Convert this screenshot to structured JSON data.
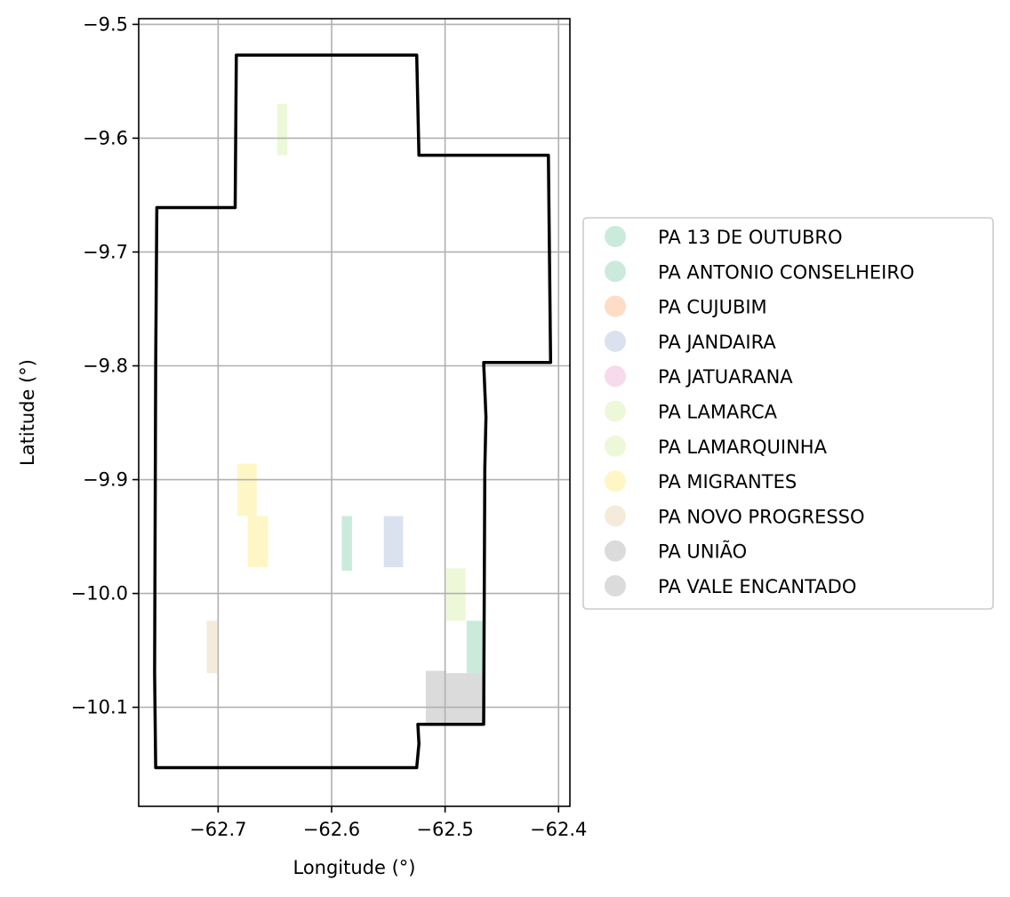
{
  "chart_data": {
    "type": "map",
    "xlabel": "Longitude (°)",
    "ylabel": "Latitude (°)",
    "xlim": [
      -62.77,
      -62.39
    ],
    "ylim": [
      -10.187,
      -9.495
    ],
    "grid": true,
    "legend_position": "right",
    "x_ticks": [
      {
        "value": -62.7,
        "label": "−62.7"
      },
      {
        "value": -62.6,
        "label": "−62.6"
      },
      {
        "value": -62.5,
        "label": "−62.5"
      },
      {
        "value": -62.4,
        "label": "−62.4"
      }
    ],
    "y_ticks": [
      {
        "value": -9.5,
        "label": "−9.5"
      },
      {
        "value": -9.6,
        "label": "−9.6"
      },
      {
        "value": -9.7,
        "label": "−9.7"
      },
      {
        "value": -9.8,
        "label": "−9.8"
      },
      {
        "value": -9.9,
        "label": "−9.9"
      },
      {
        "value": -10.0,
        "label": "−10.0"
      },
      {
        "value": -10.1,
        "label": "−10.1"
      }
    ],
    "boundary": [
      [
        -62.684,
        -9.527
      ],
      [
        -62.525,
        -9.527
      ],
      [
        -62.523,
        -9.615
      ],
      [
        -62.409,
        -9.615
      ],
      [
        -62.407,
        -9.797
      ],
      [
        -62.466,
        -9.797
      ],
      [
        -62.464,
        -9.845
      ],
      [
        -62.465,
        -9.89
      ],
      [
        -62.466,
        -10.115
      ],
      [
        -62.524,
        -10.115
      ],
      [
        -62.523,
        -10.132
      ],
      [
        -62.525,
        -10.153
      ],
      [
        -62.755,
        -10.153
      ],
      [
        -62.756,
        -10.07
      ],
      [
        -62.755,
        -9.8
      ],
      [
        -62.754,
        -9.661
      ],
      [
        -62.685,
        -9.661
      ],
      [
        -62.684,
        -9.527
      ]
    ],
    "parcels": [
      {
        "name": "PA 13 DE OUTUBRO",
        "color": "#b3e2cd",
        "rects": [
          [
            -62.591,
            -9.932,
            -62.582,
            -9.98
          ]
        ]
      },
      {
        "name": "PA ANTONIO CONSELHEIRO",
        "color": "#b3e2cd",
        "rects": [
          [
            -62.481,
            -10.024,
            -62.465,
            -10.07
          ]
        ]
      },
      {
        "name": "PA CUJUBIM",
        "color": "#fdcdac",
        "rects": []
      },
      {
        "name": "PA JANDAIRA",
        "color": "#cbd5e8",
        "rects": [
          [
            -62.554,
            -9.932,
            -62.537,
            -9.977
          ]
        ]
      },
      {
        "name": "PA JATUARANA",
        "color": "#f4cae4",
        "rects": []
      },
      {
        "name": "PA LAMARCA",
        "color": "#e6f5c9",
        "rects": [
          [
            -62.499,
            -9.978,
            -62.482,
            -10.024
          ]
        ]
      },
      {
        "name": "PA LAMARQUINHA",
        "color": "#e6f5c9",
        "rects": [
          [
            -62.648,
            -9.57,
            -62.639,
            -9.615
          ]
        ]
      },
      {
        "name": "PA MIGRANTES",
        "color": "#fff2ae",
        "rects": [
          [
            -62.683,
            -9.886,
            -62.666,
            -9.932
          ],
          [
            -62.674,
            -9.932,
            -62.656,
            -9.977
          ]
        ]
      },
      {
        "name": "PA NOVO PROGRESSO",
        "color": "#f1e2cc",
        "rects": [
          [
            -62.71,
            -10.024,
            -62.701,
            -10.07
          ]
        ]
      },
      {
        "name": "PA UNIÃO",
        "color": "#cccccc",
        "rects": [
          [
            -62.517,
            -10.068,
            -62.499,
            -10.115
          ]
        ]
      },
      {
        "name": "PA VALE ENCANTADO",
        "color": "#cccccc",
        "rects": [
          [
            -62.499,
            -10.07,
            -62.465,
            -10.115
          ]
        ]
      }
    ]
  }
}
